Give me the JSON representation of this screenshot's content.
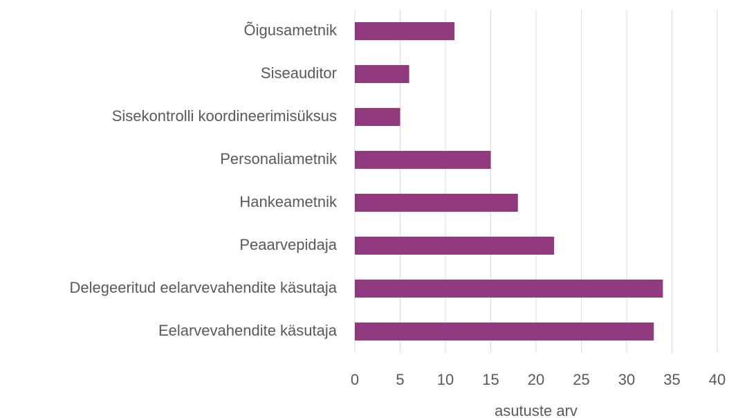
{
  "chart_data": {
    "type": "barh",
    "categories": [
      "Õigusametnik",
      "Siseauditor",
      "Sisekontrolli koordineerimisüksus",
      "Personaliametnik",
      "Hankeametnik",
      "Peaarvepidaja",
      "Delegeeritud eelarvevahendite käsutaja",
      "Eelarvevahendite käsutaja"
    ],
    "values": [
      11,
      6,
      5,
      15,
      18,
      22,
      34,
      33
    ],
    "color": "#913a7f",
    "xlabel": "asutuste arv",
    "xlim": [
      0,
      40
    ],
    "xticks": [
      0,
      5,
      10,
      15,
      20,
      25,
      30,
      35,
      40
    ],
    "grid": true
  }
}
